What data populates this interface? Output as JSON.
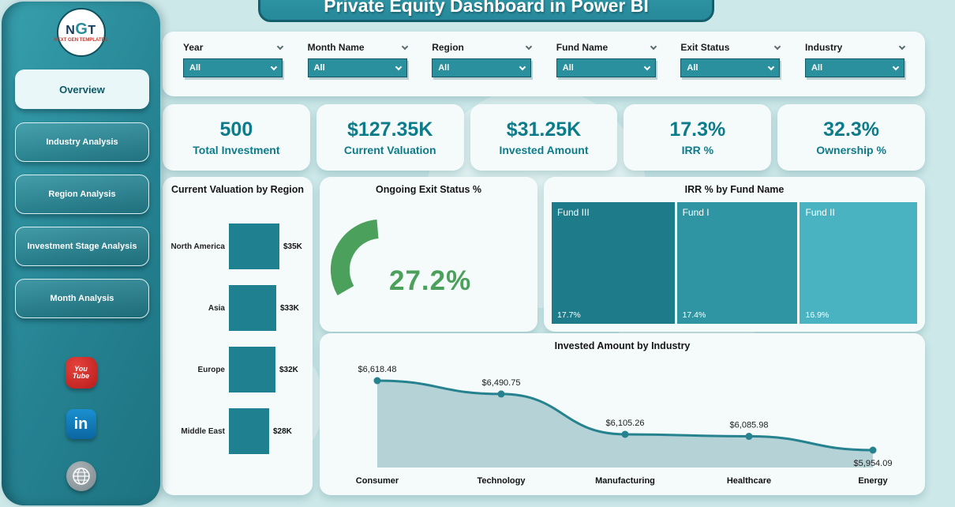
{
  "header": {
    "title": "Private Equity Dashboard in Power BI"
  },
  "logo": {
    "text": "NGT",
    "subtext": "NEXT GEN TEMPLATES"
  },
  "sidebar": {
    "items": [
      {
        "label": "Overview",
        "active": true
      },
      {
        "label": "Industry Analysis",
        "active": false
      },
      {
        "label": "Region Analysis",
        "active": false
      },
      {
        "label": "Investment Stage Analysis",
        "active": false
      },
      {
        "label": "Month Analysis",
        "active": false
      }
    ],
    "social": [
      {
        "name": "youtube",
        "line1": "You",
        "line2": "Tube",
        "color": "#c8302b"
      },
      {
        "name": "linkedin",
        "label": "in",
        "color": "#0a77b5"
      },
      {
        "name": "website",
        "label": "www",
        "color": "#8e989c"
      }
    ]
  },
  "filters": {
    "items": [
      {
        "label": "Year",
        "value": "All"
      },
      {
        "label": "Month Name",
        "value": "All"
      },
      {
        "label": "Region",
        "value": "All"
      },
      {
        "label": "Fund Name",
        "value": "All"
      },
      {
        "label": "Exit Status",
        "value": "All"
      },
      {
        "label": "Industry",
        "value": "All"
      }
    ]
  },
  "kpis": [
    {
      "value": "500",
      "label": "Total Investment"
    },
    {
      "value": "$127.35K",
      "label": "Current Valuation"
    },
    {
      "value": "$31.25K",
      "label": "Invested Amount"
    },
    {
      "value": "17.3%",
      "label": "IRR %"
    },
    {
      "value": "32.3%",
      "label": "Ownership %"
    }
  ],
  "chart_data": [
    {
      "type": "bar",
      "title": "Current Valuation by Region",
      "orientation": "horizontal",
      "categories": [
        "North America",
        "Asia",
        "Europe",
        "Middle East"
      ],
      "values": [
        35,
        33,
        32,
        28
      ],
      "value_labels": [
        "$35K",
        "$33K",
        "$32K",
        "$28K"
      ],
      "bar_color": "#1f8090"
    },
    {
      "type": "gauge",
      "title": "Ongoing Exit Status %",
      "value": 27.2,
      "value_label": "27.2%",
      "color": "#4ba05c"
    },
    {
      "type": "treemap",
      "title": "IRR % by Fund Name",
      "categories": [
        "Fund III",
        "Fund I",
        "Fund II"
      ],
      "values": [
        17.7,
        17.4,
        16.9
      ],
      "value_labels": [
        "17.7%",
        "17.4%",
        "16.9%"
      ],
      "colors": [
        "#1e7b8a",
        "#2f95a2",
        "#49b3c1"
      ]
    },
    {
      "type": "area",
      "title": "Invested Amount by Industry",
      "categories": [
        "Consumer",
        "Technology",
        "Manufacturing",
        "Healthcare",
        "Energy"
      ],
      "values": [
        6618.48,
        6490.75,
        6105.26,
        6085.98,
        5954.09
      ],
      "value_labels": [
        "$6,618.48",
        "$6,490.75",
        "$6,105.26",
        "$6,085.98",
        "$5,954.09"
      ],
      "line_color": "#26828f",
      "fill_color": "#b5d2d6"
    }
  ],
  "colors": {
    "accent": "#2b909d",
    "accent_dark": "#14616e",
    "kpi_text": "#0e7b8b",
    "background": "#cde8e9",
    "gauge_green": "#4ba05c"
  }
}
